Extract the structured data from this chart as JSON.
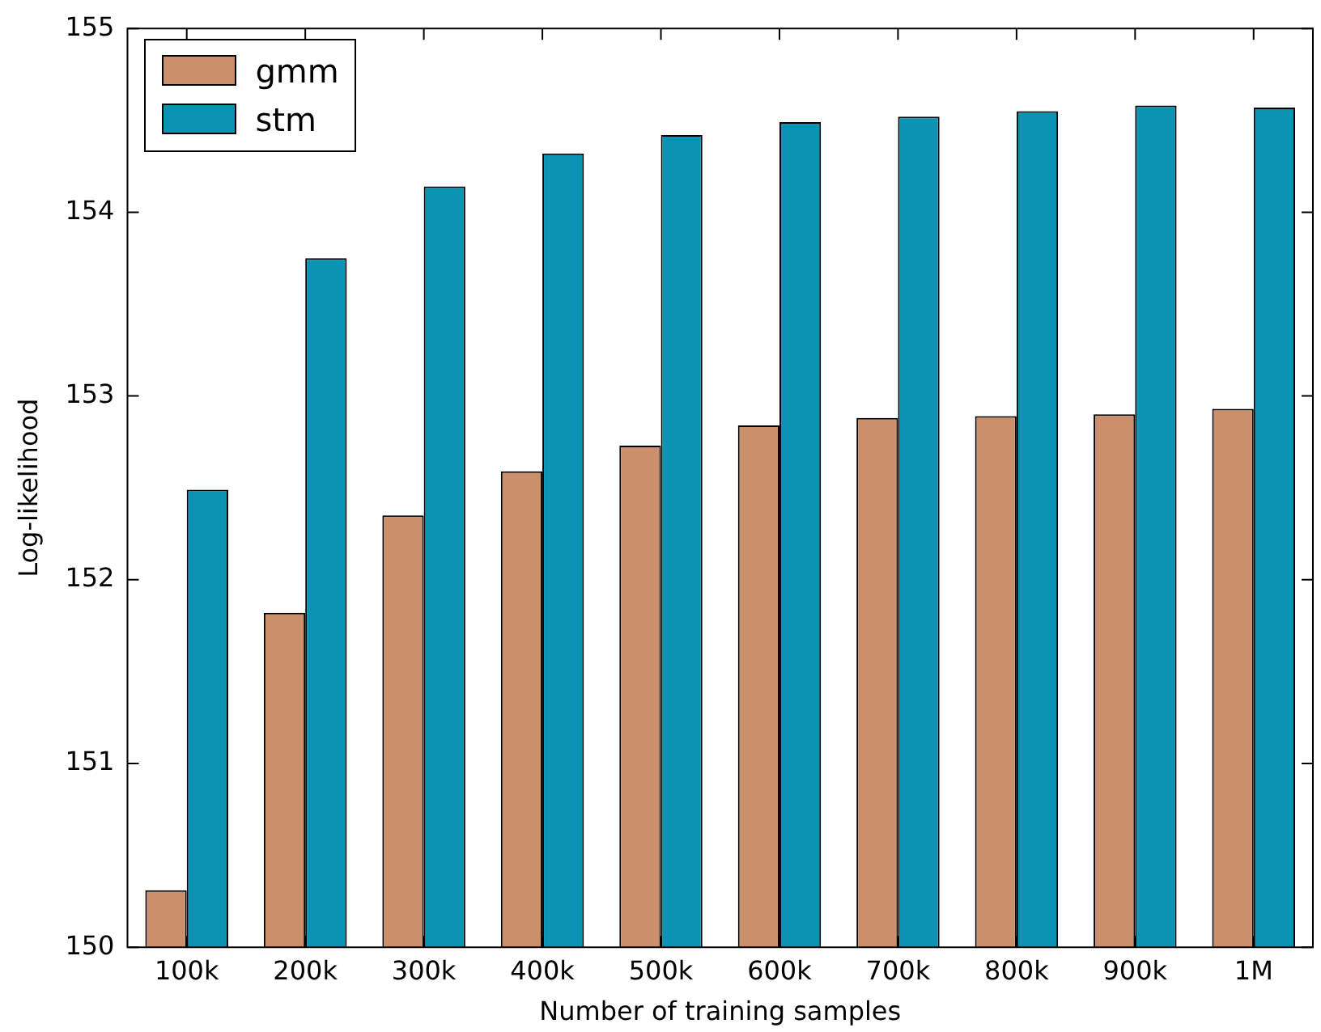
{
  "chart_data": {
    "type": "bar",
    "xlabel": "Number of training samples",
    "ylabel": "Log-likelihood",
    "categories": [
      "100k",
      "200k",
      "300k",
      "400k",
      "500k",
      "600k",
      "700k",
      "800k",
      "900k",
      "1M"
    ],
    "series": [
      {
        "name": "gmm",
        "color": "#cc8f6b",
        "values": [
          150.31,
          151.82,
          152.35,
          152.59,
          152.73,
          152.84,
          152.88,
          152.89,
          152.9,
          152.93
        ]
      },
      {
        "name": "stm",
        "color": "#0b93b4",
        "values": [
          152.49,
          153.75,
          154.14,
          154.32,
          154.42,
          154.49,
          154.52,
          154.55,
          154.58,
          154.57
        ]
      }
    ],
    "ylim": [
      150,
      155
    ],
    "yticks": [
      150,
      151,
      152,
      153,
      154,
      155
    ],
    "grid": false,
    "legend": "top left"
  }
}
